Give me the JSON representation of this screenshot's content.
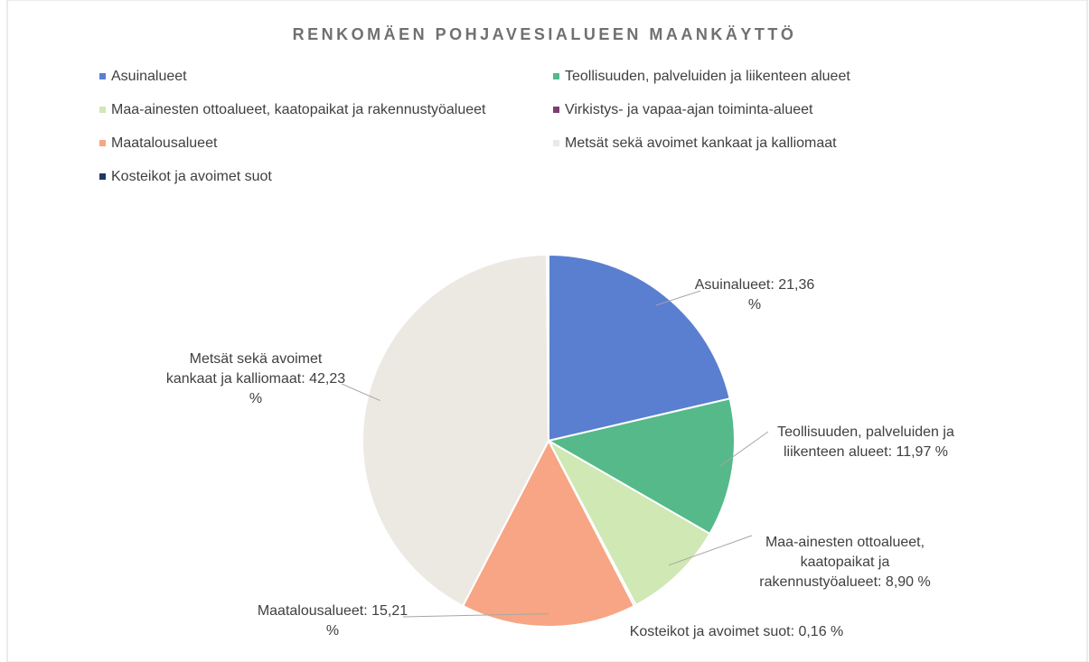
{
  "chart_data": {
    "type": "pie",
    "title": "RENKOMÄEN POHJAVESIALUEEN MAANKÄYTTÖ",
    "categories": [
      "Asuinalueet",
      "Teollisuuden, palveluiden ja liikenteen alueet",
      "Maa-ainesten ottoalueet, kaatopaikat ja rakennustyöalueet",
      "Virkistys- ja vapaa-ajan toiminta-alueet",
      "Maatalousalueet",
      "Metsät sekä avoimet kankaat ja kalliomaat",
      "Kosteikot ja avoimet suot"
    ],
    "values": [
      21.36,
      11.97,
      8.9,
      0.17,
      15.21,
      42.23,
      0.16
    ],
    "value_labels": [
      "Asuinalueet: 21,36 %",
      "Teollisuuden, palveluiden ja liikenteen alueet: 11,97 %",
      "Maa-ainesten ottoalueet, kaatopaikat ja rakennustyöalueet: 8,90 %",
      null,
      "Maatalousalueet: 15,21 %",
      "Metsät sekä avoimet kankaat ja kalliomaat: 42,23 %",
      "Kosteikot ja avoimet suot: 0,16 %"
    ],
    "colors": [
      "#5a7fd0",
      "#55b98a",
      "#cfe8b4",
      "#7b3f6e",
      "#f7a584",
      "#ece9e3",
      "#1f3864"
    ],
    "legend": "top"
  }
}
